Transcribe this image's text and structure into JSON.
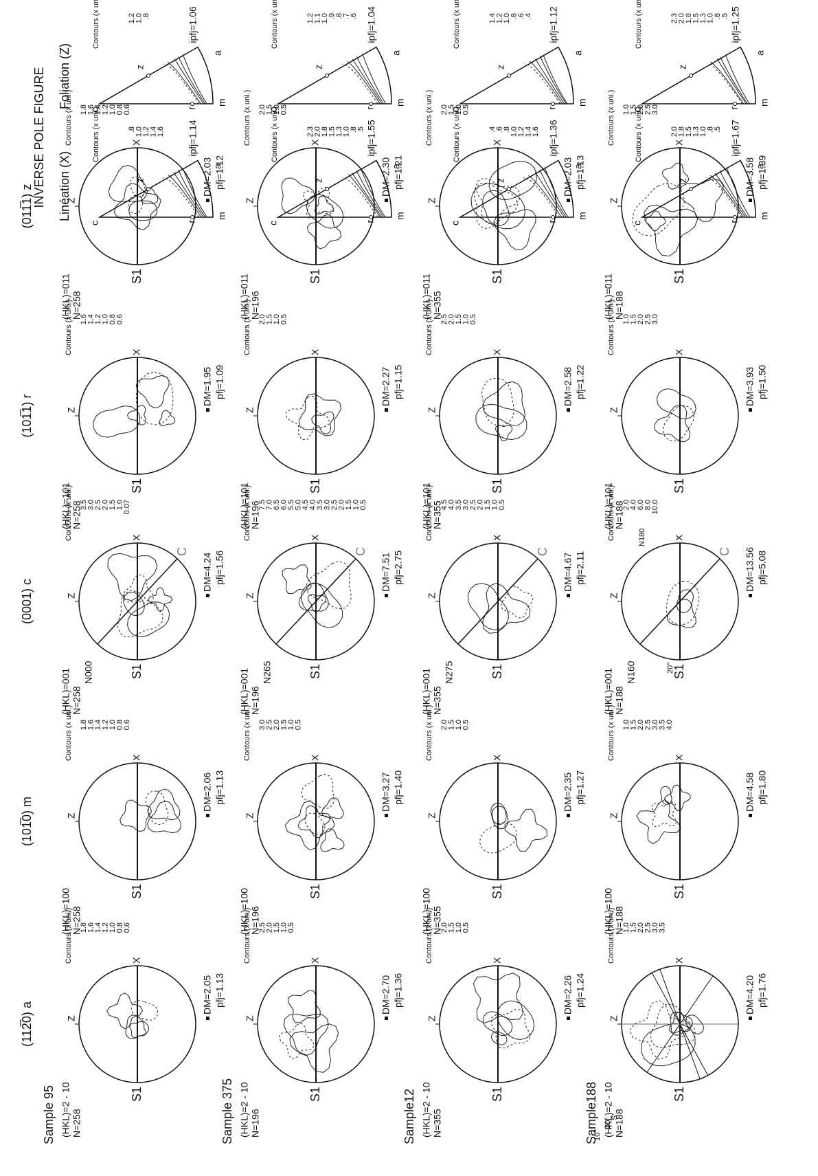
{
  "columns": [
    "(112̅0) a",
    "(101̅0) m",
    "(0001) c",
    "(101̅1) r",
    "(011̅1) z"
  ],
  "ipf_title": "INVERSE POLE FIGURE",
  "ipf_headers": [
    "Linéation (X)",
    "Foliation (Z)"
  ],
  "labels": {
    "contours": "Contours (x uni.)",
    "s1": "S1",
    "z": "Z",
    "x": "X",
    "vertices": {
      "c": "c",
      "z": "z",
      "r": "r",
      "a": "a",
      "m": "m"
    }
  },
  "samples": [
    {
      "name": "Sample 95",
      "figures": [
        {
          "hkl": "(HKL)=2 - 10",
          "n": "N=258",
          "contours": [
            "1.8",
            "1.6",
            "1.4",
            "1.2",
            "1.0",
            "0.8",
            "0.6"
          ],
          "dm": "DM=2.05",
          "pfj": "pfj=1.13"
        },
        {
          "hkl": "(HKL)=100",
          "n": "N=258",
          "contours": [
            "1.8",
            "1.6",
            "1.4",
            "1.2",
            "1.0",
            "0.8",
            "0.6"
          ],
          "dm": "DM=2.06",
          "pfj": "pfj=1.13"
        },
        {
          "hkl": "(HKL)=001",
          "n": "N=258",
          "n_label": "N000",
          "plane": "C",
          "contours": [
            "3.5",
            "3.0",
            "2.5",
            "2.0",
            "1.5",
            "1.0",
            "0.07"
          ],
          "dm": "DM=4.24",
          "pfj": "pfj=1.56"
        },
        {
          "hkl": "(HKL)=101",
          "n": "N=258",
          "contours": [
            "1.6",
            "1.4",
            "1.2",
            "1.0",
            "0.8",
            "0.6"
          ],
          "dm": "DM=1.95",
          "pfj": "pfj=1.09"
        },
        {
          "hkl": "(HKL)=011",
          "n": "N=258",
          "contours": [
            "1.8",
            "1.6",
            "1.4",
            "1.2",
            "1.0",
            "0.8",
            "0.6"
          ],
          "dm": "DM=2.03",
          "pfj": "pfj=1.12"
        }
      ],
      "ipf": [
        {
          "contours": [
            ".8",
            "1.0",
            "1.2",
            "1.4",
            "1.6"
          ],
          "ipfj": "ipfj=1.14"
        },
        {
          "contours": [
            "1.2",
            "1.0",
            ".8"
          ],
          "ipfj": "ipfj=1.06"
        }
      ]
    },
    {
      "name": "Sample 375",
      "figures": [
        {
          "hkl": "(HKL)=2 - 10",
          "n": "N=196",
          "contours": [
            "2.5",
            "2.0",
            "1.5",
            "1.0",
            "0.5"
          ],
          "dm": "DM=2.70",
          "pfj": "pfj=1.36"
        },
        {
          "hkl": "(HKL)=100",
          "n": "N=196",
          "contours": [
            "3.0",
            "2.5",
            "2.0",
            "1.5",
            "1.0",
            "0.5"
          ],
          "dm": "DM=3.27",
          "pfj": "pfj=1.40"
        },
        {
          "hkl": "(HKL)=001",
          "n": "N=196",
          "n_label": "N265",
          "plane": "C",
          "contours": [
            "7.5",
            "7.0",
            "6.5",
            "6.0",
            "5.5",
            "5.0",
            "4.5",
            "4.0",
            "3.5",
            "3.0",
            "2.5",
            "2.0",
            "1.5",
            "1.0",
            "0.5"
          ],
          "dm": "DM=7.51",
          "pfj": "pfj=2.75"
        },
        {
          "hkl": "(HKL)=101",
          "n": "N=196",
          "contours": [
            "2.0",
            "1.5",
            "1.0",
            "0.5"
          ],
          "dm": "DM=2.27",
          "pfj": "pfj=1.15"
        },
        {
          "hkl": "(HKL)=011",
          "n": "N=196",
          "contours": [
            "2.0",
            "1.5",
            "1.0",
            "0.5"
          ],
          "dm": "DM=2.30",
          "pfj": "pfj=1.21"
        }
      ],
      "ipf": [
        {
          "contours": [
            "2.3",
            "2.0",
            "1.8",
            "1.5",
            "1.3",
            "1.0",
            ".8",
            ".5"
          ],
          "ipfj": "ipfj=1.55"
        },
        {
          "contours": [
            "1.2",
            "1.1",
            "1.0",
            ".9",
            ".8",
            ".7",
            ".6"
          ],
          "ipfj": "ipfj=1.04"
        }
      ]
    },
    {
      "name": "Sample12",
      "figures": [
        {
          "hkl": "(HKL)=2 - 10",
          "n": "N=355",
          "contours": [
            "2.0",
            "1.5",
            "1.0",
            "0.5"
          ],
          "dm": "DM=2.26",
          "pfj": "pfj=1.24"
        },
        {
          "hkl": "(HKL)=100",
          "n": "N=355",
          "contours": [
            "2.0",
            "1.5",
            "1.0",
            "0.5"
          ],
          "dm": "DM=2.35",
          "pfj": "pfj=1.27"
        },
        {
          "hkl": "(HKL)=001",
          "n": "N=355",
          "n_label": "N275",
          "plane": "C",
          "contours": [
            "4.5",
            "4.0",
            "3.5",
            "3.0",
            "2.5",
            "2.0",
            "1.5",
            "1.0",
            "0.5"
          ],
          "dm": "DM=4.67",
          "pfj": "pfj=2.11"
        },
        {
          "hkl": "(HKL)=101",
          "n": "N=355",
          "contours": [
            "2.5",
            "2.0",
            "1.5",
            "1.0",
            "0.5"
          ],
          "dm": "DM=2.58",
          "pfj": "pfj=1.22"
        },
        {
          "hkl": "(HKL)=011",
          "n": "N=355",
          "contours": [
            "2.0",
            "1.5",
            "1.0",
            "0.5"
          ],
          "dm": "DM=2.03",
          "pfj": "pfj=1.13"
        }
      ],
      "ipf": [
        {
          "contours": [
            ".4",
            ".6",
            ".8",
            "1.0",
            "1.2",
            "1.4",
            "1.6"
          ],
          "ipfj": "ipfj=1.36"
        },
        {
          "contours": [
            "1.4",
            "1.2",
            "1.0",
            ".8",
            ".6",
            ".4"
          ],
          "ipfj": "ipfj=1.12"
        }
      ]
    },
    {
      "name": "Sample188",
      "figures": [
        {
          "hkl": "(HKL)=2 - 10",
          "n": "N=188",
          "angles": [
            "10°",
            "20°"
          ],
          "s": "S",
          "contours": [
            "1.0",
            "1.5",
            "2.0",
            "2.5",
            "3.0",
            "3.5"
          ],
          "dm": "DM=4.20",
          "pfj": "pfj=1.76"
        },
        {
          "hkl": "(HKL)=100",
          "n": "N=188",
          "contours": [
            "1.0",
            "1.5",
            "2.0",
            "2.5",
            "3.0",
            "3.5",
            "4.0"
          ],
          "dm": "DM=4.58",
          "pfj": "pfj=1.80"
        },
        {
          "hkl": "(HKL)=001",
          "n": "N=188",
          "n_label": "N160",
          "plane": "C",
          "n2_label": "N180",
          "angle": "20°",
          "contours": [
            "2.0",
            "4.0",
            "6.0",
            "8.0",
            "10.0"
          ],
          "dm": "DM=13.56",
          "pfj": "pfj=5.08"
        },
        {
          "hkl": "(HKL)=101",
          "n": "N=188",
          "contours": [
            "1.0",
            "1.5",
            "2.0",
            "2.5",
            "3.0"
          ],
          "dm": "DM=3.93",
          "pfj": "pfj=1.50"
        },
        {
          "hkl": "(HKL)=011",
          "n": "N=188",
          "contours": [
            "1.0",
            "1.5",
            "2.0",
            "2.5",
            "3.0"
          ],
          "dm": "DM=3.58",
          "pfj": "pfj=1.39"
        }
      ],
      "ipf": [
        {
          "contours": [
            "2.0",
            "1.8",
            "1.5",
            "1.3",
            "1.0",
            ".8",
            ".5"
          ],
          "ipfj": "ipfj=1.67"
        },
        {
          "contours": [
            "2.3",
            "2.0",
            "1.8",
            "1.5",
            "1.3",
            "1.0",
            ".8",
            ".5"
          ],
          "ipfj": "ipfj=1.25"
        }
      ]
    }
  ]
}
